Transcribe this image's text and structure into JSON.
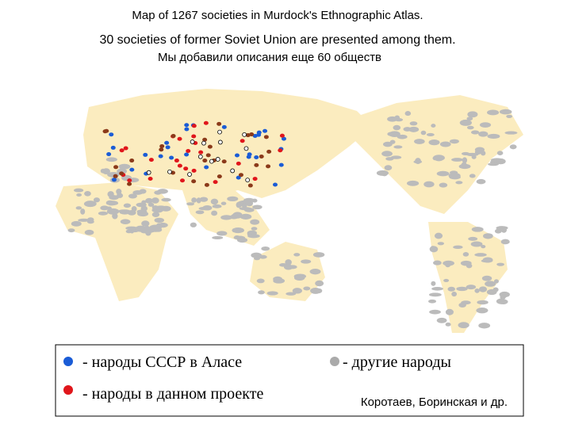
{
  "header": {
    "title": "Map of 1267 societies in Murdock's Ethnographic Atlas.",
    "subtitle": "30 societies of former Soviet Union are presented among them.",
    "note": "Мы добавили описания еще 60 обществ"
  },
  "legend": {
    "items": [
      {
        "label": "- народы СССР в Аласе"
      },
      {
        "label": "-  другие народы"
      },
      {
        "label": "- народы в данном проекте"
      }
    ],
    "credit": "Коротаев, Боринская и др."
  }
}
